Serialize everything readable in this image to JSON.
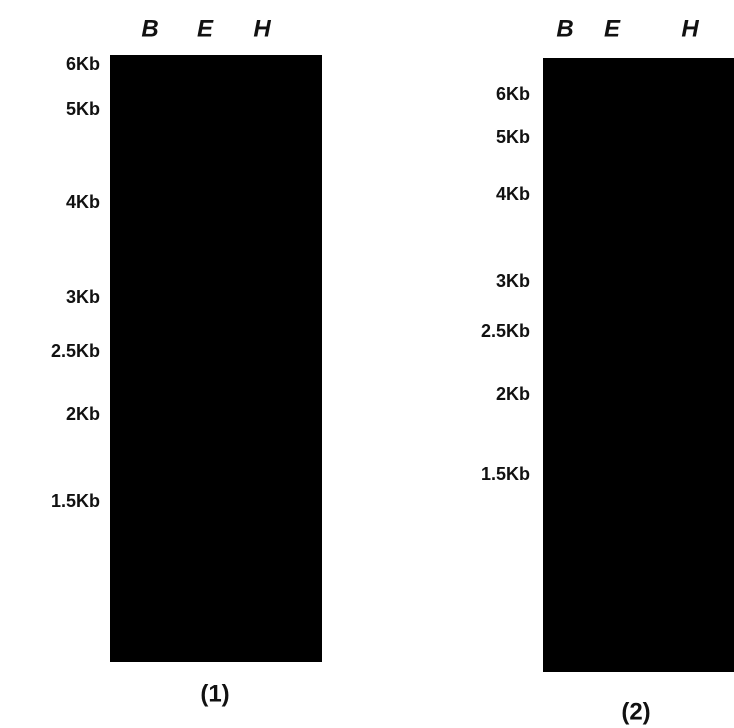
{
  "panels": [
    {
      "lanes": [
        "B",
        "E",
        "H"
      ],
      "markers": [
        "6Kb",
        "5Kb",
        "4Kb",
        "3Kb",
        "2.5Kb",
        "2Kb",
        "1.5Kb"
      ],
      "caption": "(1)"
    },
    {
      "lanes": [
        "B",
        "E",
        "H"
      ],
      "markers": [
        "6Kb",
        "5Kb",
        "4Kb",
        "3Kb",
        "2.5Kb",
        "2Kb",
        "1.5Kb"
      ],
      "caption": "(2)"
    }
  ]
}
